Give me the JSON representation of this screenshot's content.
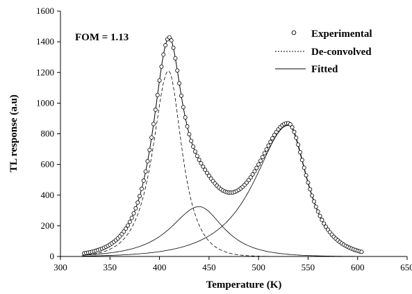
{
  "chart_data": {
    "type": "line",
    "xlabel": "Temperature (K)",
    "ylabel": "TL response (a.u)",
    "xlim": [
      300,
      650
    ],
    "ylim": [
      0,
      1600
    ],
    "x_ticks": [
      300,
      350,
      400,
      450,
      500,
      550,
      600,
      650
    ],
    "y_ticks": [
      0,
      200,
      400,
      600,
      800,
      1000,
      1200,
      1400,
      1600
    ],
    "annotation": "FOM = 1.13",
    "legend_position": "top-right",
    "legend": {
      "experimental": "Experimental",
      "deconvolved": "De-convolved",
      "fitted": "Fitted"
    },
    "peaks": [
      {
        "Tm": 409,
        "Im": 1210,
        "width_low": 23,
        "width_high": 20
      },
      {
        "Tm": 440,
        "Im": 325,
        "width_low": 42,
        "width_high": 36
      },
      {
        "Tm": 530,
        "Im": 855,
        "width_low": 50,
        "width_high": 28
      }
    ],
    "experimental_points": {
      "x_start": 324,
      "x_end": 604,
      "step": 2
    },
    "fitted_range": [
      322,
      606
    ],
    "colors": {
      "line": "#000000",
      "marker_fill": "#ffffff"
    }
  }
}
